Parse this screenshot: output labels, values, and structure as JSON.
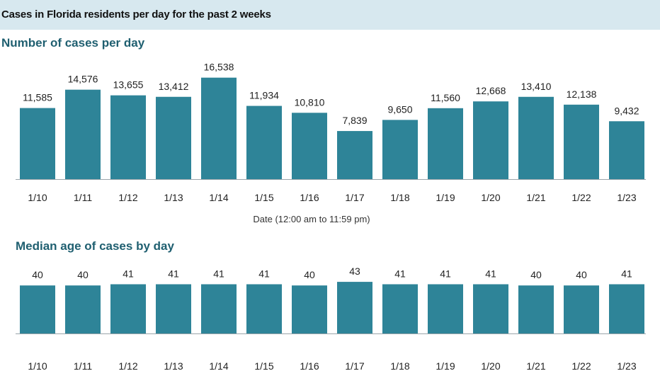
{
  "header": {
    "title": "Cases in Florida residents per day for the past 2 weeks"
  },
  "colors": {
    "bar": "#2e8498",
    "banner": "#d7e8ef",
    "section_title": "#1f5f70",
    "axis": "#9aa5aa"
  },
  "chart_data": [
    {
      "type": "bar",
      "title": "Number of cases per day",
      "xlabel": "Date (12:00 am to 11:59 pm)",
      "ylabel": "",
      "categories": [
        "1/10",
        "1/11",
        "1/12",
        "1/13",
        "1/14",
        "1/15",
        "1/16",
        "1/17",
        "1/18",
        "1/19",
        "1/20",
        "1/21",
        "1/22",
        "1/23"
      ],
      "values": [
        11585,
        14576,
        13655,
        13412,
        16538,
        11934,
        10810,
        7839,
        9650,
        11560,
        12668,
        13410,
        12138,
        9432
      ],
      "value_labels": [
        "11,585",
        "14,576",
        "13,655",
        "13,412",
        "16,538",
        "11,934",
        "10,810",
        "7,839",
        "9,650",
        "11,560",
        "12,668",
        "13,410",
        "12,138",
        "9,432"
      ],
      "ylim": [
        0,
        18000
      ],
      "grid": false,
      "legend": "none"
    },
    {
      "type": "bar",
      "title": "Median age of cases by day",
      "xlabel": "",
      "ylabel": "",
      "categories": [
        "1/10",
        "1/11",
        "1/12",
        "1/13",
        "1/14",
        "1/15",
        "1/16",
        "1/17",
        "1/18",
        "1/19",
        "1/20",
        "1/21",
        "1/22",
        "1/23"
      ],
      "values": [
        40,
        40,
        41,
        41,
        41,
        41,
        40,
        43,
        41,
        41,
        41,
        40,
        40,
        41
      ],
      "value_labels": [
        "40",
        "40",
        "41",
        "41",
        "41",
        "41",
        "40",
        "43",
        "41",
        "41",
        "41",
        "40",
        "40",
        "41"
      ],
      "ylim": [
        0,
        46
      ],
      "grid": false,
      "legend": "none"
    }
  ]
}
